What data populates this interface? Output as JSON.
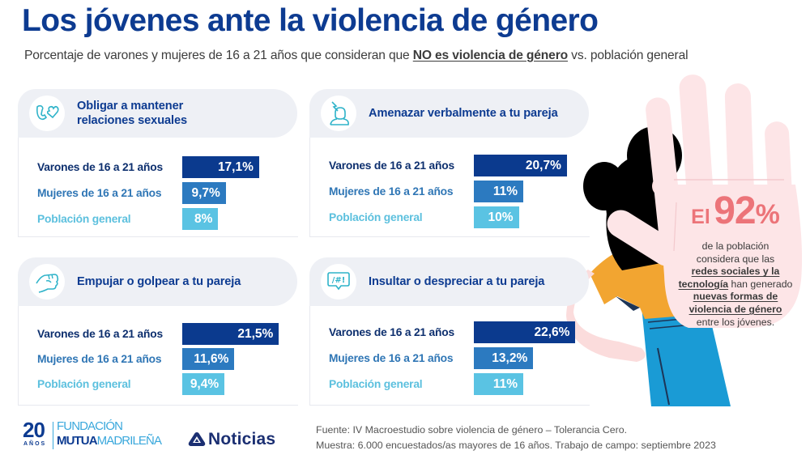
{
  "header": {
    "title": "Los jóvenes ante la violencia de género",
    "subtitle_pre": "Porcentaje de varones y mujeres de 16 a 21 años que consideran que ",
    "subtitle_emph": "NO es violencia de género",
    "subtitle_post": " vs. población general"
  },
  "colors": {
    "title": "#0d3b91",
    "varones": "#0b3a8e",
    "mujeres": "#2c7ac0",
    "poblacion": "#5ac3e3",
    "icon": "#2fb3c9",
    "accent": "#ec7479"
  },
  "chart_data": [
    {
      "type": "bar",
      "orientation": "horizontal",
      "title": "Obligar a mantener relaciones sexuales",
      "icon": "biceps-heart-icon",
      "categories": [
        "Varones de 16 a 21 años",
        "Mujeres de 16 a 21 años",
        "Población general"
      ],
      "values": [
        17.1,
        9.7,
        8
      ],
      "value_labels": [
        "17,1%",
        "9,7%",
        "8%"
      ],
      "unit": "%"
    },
    {
      "type": "bar",
      "orientation": "horizontal",
      "title": "Amenazar verbalmente a tu pareja",
      "icon": "threatened-person-icon",
      "categories": [
        "Varones de 16 a 21 años",
        "Mujeres de 16 a 21 años",
        "Población general"
      ],
      "values": [
        20.7,
        11,
        10
      ],
      "value_labels": [
        "20,7%",
        "11%",
        "10%"
      ],
      "unit": "%"
    },
    {
      "type": "bar",
      "orientation": "horizontal",
      "title": "Empujar o golpear a tu pareja",
      "icon": "fist-icon",
      "categories": [
        "Varones de 16 a 21 años",
        "Mujeres de 16 a 21 años",
        "Población general"
      ],
      "values": [
        21.5,
        11.6,
        9.4
      ],
      "value_labels": [
        "21,5%",
        "11,6%",
        "9,4%"
      ],
      "unit": "%"
    },
    {
      "type": "bar",
      "orientation": "horizontal",
      "title": "Insultar o despreciar a tu pareja",
      "icon": "insult-speech-bubble-icon",
      "categories": [
        "Varones de 16 a 21 años",
        "Mujeres de 16 a 21 años",
        "Población general"
      ],
      "values": [
        22.6,
        13.2,
        11
      ],
      "value_labels": [
        "22,6%",
        "13,2%",
        "11%"
      ],
      "unit": "%"
    }
  ],
  "icon_text": {
    "insult": "/#!"
  },
  "callout": {
    "lead": "El",
    "value_number": "92",
    "value_unit": "%",
    "line1": "de la población",
    "line2": "considera que las",
    "line3_u": "redes sociales y la",
    "line4_u": "tecnología",
    "line4_rest": " han generado",
    "line5_u": "nuevas formas de",
    "line6_u": "violencia de género",
    "line7": "entre los jóvenes."
  },
  "footer": {
    "fundacion": {
      "years": "20",
      "years_label": "AÑOS",
      "line1": "FUNDACIÓN",
      "brand_bold": "MUTUA",
      "brand_light": "MADRILEÑA"
    },
    "noticias": {
      "label": "Noticias"
    },
    "source": {
      "line1": "Fuente: IV Macroestudio sobre violencia de género – Tolerancia Cero.",
      "line2": "Muestra: 6.000 encuestados/as mayores de 16 años. Trabajo de campo: septiembre 2023"
    }
  }
}
